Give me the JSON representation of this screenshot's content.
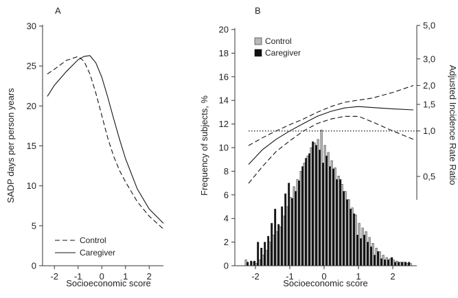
{
  "colors": {
    "axis": "#333333",
    "line": "#111111",
    "control_bar": "#b8b8b8",
    "caregiver_bar": "#111111",
    "background": "#ffffff"
  },
  "chart_data": [
    {
      "panel_label": "A",
      "type": "line",
      "xlabel": "Socioeconomic score",
      "ylabel": "SADP days per person years",
      "xlim": [
        -2.5,
        2.6
      ],
      "ylim": [
        0,
        30
      ],
      "x_ticks": [
        "-2",
        "-1",
        "0",
        "1",
        "2"
      ],
      "y_ticks": [
        "0",
        "5",
        "10",
        "15",
        "20",
        "25",
        "30"
      ],
      "legend_position": "bottom-left",
      "series": [
        {
          "name": "Control",
          "style": "dashed",
          "x": [
            -2.3,
            -2.0,
            -1.5,
            -1.0,
            -0.75,
            -0.5,
            -0.25,
            0.0,
            0.25,
            0.5,
            0.75,
            1.0,
            1.5,
            2.0,
            2.6
          ],
          "y": [
            24.0,
            24.6,
            25.7,
            26.2,
            25.6,
            24.0,
            21.6,
            18.8,
            16.0,
            13.7,
            11.9,
            10.5,
            8.0,
            6.2,
            4.6
          ]
        },
        {
          "name": "Caregiver",
          "style": "solid",
          "x": [
            -2.3,
            -2.0,
            -1.5,
            -1.0,
            -0.75,
            -0.5,
            -0.25,
            0.0,
            0.25,
            0.5,
            0.75,
            1.0,
            1.5,
            2.0,
            2.6
          ],
          "y": [
            21.2,
            22.6,
            24.3,
            25.8,
            26.2,
            26.3,
            25.4,
            23.6,
            21.1,
            18.4,
            15.8,
            13.4,
            9.6,
            7.1,
            5.3
          ]
        }
      ]
    },
    {
      "panel_label": "B",
      "type": "bar",
      "xlabel": "Socioeconomic score",
      "ylabel": "Frequency of subjects, %",
      "y2label": "Adjusted Incidence Rate Ratio",
      "xlim": [
        -2.6,
        2.7
      ],
      "ylim": [
        0,
        20
      ],
      "y2_scale": "log",
      "y2lim": [
        0.35,
        5.0
      ],
      "x_ticks": [
        "-2",
        "-1",
        "0",
        "1",
        "2"
      ],
      "y_ticks": [
        "0",
        "2",
        "4",
        "6",
        "8",
        "10",
        "12",
        "14",
        "16",
        "18",
        "20"
      ],
      "y2_ticks": [
        "0,5",
        "1,0",
        "1,5",
        "2,0",
        "3,0",
        "5,0"
      ],
      "y2_tick_values": [
        0.5,
        1.0,
        1.5,
        2.0,
        3.0,
        5.0
      ],
      "reference_line_irr": 1.0,
      "legend_position": "top-left",
      "bin_centers": [
        -2.3,
        -2.2,
        -2.1,
        -2.0,
        -1.9,
        -1.8,
        -1.7,
        -1.6,
        -1.5,
        -1.4,
        -1.3,
        -1.2,
        -1.1,
        -1.0,
        -0.9,
        -0.8,
        -0.7,
        -0.6,
        -0.5,
        -0.4,
        -0.3,
        -0.2,
        -0.1,
        0.0,
        0.1,
        0.2,
        0.3,
        0.4,
        0.5,
        0.6,
        0.7,
        0.8,
        0.9,
        1.0,
        1.1,
        1.2,
        1.3,
        1.4,
        1.5,
        1.6,
        1.7,
        1.8,
        1.9,
        2.0,
        2.1,
        2.2,
        2.3,
        2.4,
        2.5,
        2.6
      ],
      "series": [
        {
          "name": "Control",
          "values": [
            0.5,
            0.0,
            0.3,
            0.2,
            0.5,
            0.9,
            1.3,
            2.0,
            2.6,
            2.9,
            3.3,
            4.2,
            5.0,
            5.8,
            6.7,
            7.3,
            8.0,
            8.7,
            9.3,
            10.0,
            10.4,
            10.7,
            11.5,
            10.2,
            9.6,
            8.9,
            8.3,
            7.6,
            6.9,
            6.3,
            5.6,
            4.9,
            4.3,
            3.6,
            3.2,
            2.9,
            2.4,
            1.9,
            1.5,
            1.2,
            0.9,
            0.7,
            0.6,
            0.5,
            0.4,
            0.3,
            0.3,
            0.2,
            0.2,
            0.0
          ]
        },
        {
          "name": "Caregiver",
          "values": [
            0.0,
            0.3,
            0.4,
            0.4,
            2.0,
            1.5,
            2.0,
            2.5,
            3.6,
            4.8,
            3.5,
            5.0,
            6.1,
            7.0,
            5.7,
            6.3,
            7.2,
            8.4,
            9.1,
            9.5,
            10.5,
            10.2,
            9.8,
            8.7,
            9.3,
            8.4,
            8.2,
            7.3,
            7.3,
            6.3,
            5.6,
            4.8,
            4.4,
            2.6,
            2.3,
            2.6,
            2.0,
            1.6,
            0.9,
            1.2,
            0.6,
            0.5,
            0.5,
            0.7,
            0.3,
            0.3,
            0.3,
            0.3,
            0.3,
            0.0
          ]
        }
      ],
      "irr_curves": [
        {
          "role": "estimate",
          "style": "solid",
          "x": [
            -2.2,
            -1.8,
            -1.4,
            -1.0,
            -0.6,
            -0.2,
            0.2,
            0.6,
            1.0,
            1.4,
            2.0,
            2.6
          ],
          "y": [
            0.6,
            0.75,
            0.88,
            1.0,
            1.12,
            1.25,
            1.35,
            1.42,
            1.45,
            1.43,
            1.4,
            1.38
          ]
        },
        {
          "role": "upper_ci",
          "style": "dashed",
          "x": [
            -2.2,
            -1.8,
            -1.4,
            -1.0,
            -0.6,
            -0.2,
            0.2,
            0.6,
            1.0,
            1.4,
            2.0,
            2.6
          ],
          "y": [
            0.8,
            0.9,
            1.0,
            1.1,
            1.2,
            1.33,
            1.45,
            1.55,
            1.6,
            1.65,
            1.8,
            2.0
          ]
        },
        {
          "role": "lower_ci",
          "style": "dashed",
          "x": [
            -2.2,
            -1.8,
            -1.4,
            -1.0,
            -0.6,
            -0.2,
            0.2,
            0.6,
            1.0,
            1.4,
            2.0,
            2.6
          ],
          "y": [
            0.45,
            0.58,
            0.73,
            0.86,
            1.0,
            1.12,
            1.2,
            1.25,
            1.25,
            1.15,
            1.0,
            0.88
          ]
        }
      ]
    }
  ]
}
